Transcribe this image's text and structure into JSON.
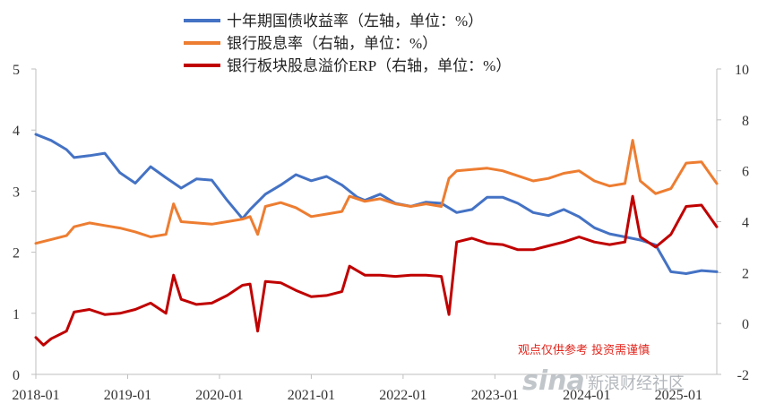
{
  "chart_data": {
    "type": "line",
    "title": "",
    "legend_position": "top-center",
    "grid": false,
    "x": {
      "start": "2018-01",
      "end": "2025-06",
      "tick_labels": [
        "2018-01",
        "2019-01",
        "2020-01",
        "2021-01",
        "2022-01",
        "2023-01",
        "2024-01",
        "2025-01"
      ]
    },
    "y_left": {
      "ylim": [
        0,
        5
      ],
      "ticks": [
        "0",
        "1",
        "2",
        "3",
        "4",
        "5"
      ]
    },
    "y_right": {
      "ylim": [
        -2,
        10
      ],
      "ticks": [
        "-2",
        "0",
        "2",
        "4",
        "6",
        "8",
        "10"
      ]
    },
    "series": [
      {
        "name": "十年期国债收益率（左轴，单位：%）",
        "axis": "left",
        "color": "#4472c4",
        "points": [
          [
            "2018-01",
            3.93
          ],
          [
            "2018-03",
            3.83
          ],
          [
            "2018-05",
            3.68
          ],
          [
            "2018-06",
            3.55
          ],
          [
            "2018-08",
            3.58
          ],
          [
            "2018-10",
            3.62
          ],
          [
            "2018-12",
            3.3
          ],
          [
            "2019-02",
            3.13
          ],
          [
            "2019-04",
            3.4
          ],
          [
            "2019-06",
            3.22
          ],
          [
            "2019-08",
            3.05
          ],
          [
            "2019-10",
            3.2
          ],
          [
            "2019-12",
            3.18
          ],
          [
            "2020-02",
            2.85
          ],
          [
            "2020-04",
            2.55
          ],
          [
            "2020-05",
            2.7
          ],
          [
            "2020-07",
            2.95
          ],
          [
            "2020-09",
            3.1
          ],
          [
            "2020-11",
            3.27
          ],
          [
            "2021-01",
            3.17
          ],
          [
            "2021-03",
            3.24
          ],
          [
            "2021-05",
            3.1
          ],
          [
            "2021-07",
            2.9
          ],
          [
            "2021-08",
            2.85
          ],
          [
            "2021-10",
            2.95
          ],
          [
            "2021-12",
            2.8
          ],
          [
            "2022-02",
            2.75
          ],
          [
            "2022-04",
            2.82
          ],
          [
            "2022-06",
            2.8
          ],
          [
            "2022-08",
            2.65
          ],
          [
            "2022-10",
            2.7
          ],
          [
            "2022-12",
            2.9
          ],
          [
            "2023-02",
            2.9
          ],
          [
            "2023-04",
            2.8
          ],
          [
            "2023-06",
            2.65
          ],
          [
            "2023-08",
            2.6
          ],
          [
            "2023-10",
            2.7
          ],
          [
            "2023-12",
            2.58
          ],
          [
            "2024-02",
            2.4
          ],
          [
            "2024-04",
            2.3
          ],
          [
            "2024-06",
            2.25
          ],
          [
            "2024-08",
            2.2
          ],
          [
            "2024-10",
            2.12
          ],
          [
            "2024-12",
            1.68
          ],
          [
            "2025-02",
            1.65
          ],
          [
            "2025-04",
            1.7
          ],
          [
            "2025-06",
            1.68
          ]
        ]
      },
      {
        "name": "银行股息率（右轴，单位：%）",
        "axis": "right",
        "color": "#ed7d31",
        "points": [
          [
            "2018-01",
            3.15
          ],
          [
            "2018-03",
            3.3
          ],
          [
            "2018-05",
            3.45
          ],
          [
            "2018-06",
            3.8
          ],
          [
            "2018-08",
            3.95
          ],
          [
            "2018-10",
            3.85
          ],
          [
            "2018-12",
            3.75
          ],
          [
            "2019-02",
            3.6
          ],
          [
            "2019-04",
            3.4
          ],
          [
            "2019-06",
            3.5
          ],
          [
            "2019-07",
            4.7
          ],
          [
            "2019-08",
            4.0
          ],
          [
            "2019-10",
            3.95
          ],
          [
            "2019-12",
            3.9
          ],
          [
            "2020-02",
            4.0
          ],
          [
            "2020-04",
            4.1
          ],
          [
            "2020-05",
            4.2
          ],
          [
            "2020-06",
            3.5
          ],
          [
            "2020-07",
            4.6
          ],
          [
            "2020-09",
            4.75
          ],
          [
            "2020-11",
            4.55
          ],
          [
            "2021-01",
            4.2
          ],
          [
            "2021-03",
            4.3
          ],
          [
            "2021-05",
            4.4
          ],
          [
            "2021-06",
            5.0
          ],
          [
            "2021-08",
            4.8
          ],
          [
            "2021-10",
            4.9
          ],
          [
            "2021-12",
            4.7
          ],
          [
            "2022-02",
            4.6
          ],
          [
            "2022-04",
            4.7
          ],
          [
            "2022-06",
            4.6
          ],
          [
            "2022-07",
            5.7
          ],
          [
            "2022-08",
            6.0
          ],
          [
            "2022-10",
            6.05
          ],
          [
            "2022-12",
            6.1
          ],
          [
            "2023-02",
            6.0
          ],
          [
            "2023-04",
            5.8
          ],
          [
            "2023-06",
            5.6
          ],
          [
            "2023-08",
            5.7
          ],
          [
            "2023-10",
            5.9
          ],
          [
            "2023-12",
            6.0
          ],
          [
            "2024-02",
            5.6
          ],
          [
            "2024-04",
            5.4
          ],
          [
            "2024-06",
            5.5
          ],
          [
            "2024-07",
            7.2
          ],
          [
            "2024-08",
            5.6
          ],
          [
            "2024-10",
            5.1
          ],
          [
            "2024-12",
            5.3
          ],
          [
            "2025-02",
            6.3
          ],
          [
            "2025-04",
            6.35
          ],
          [
            "2025-06",
            5.5
          ]
        ]
      },
      {
        "name": "银行板块股息溢价ERP（右轴，单位：%）",
        "axis": "right",
        "color": "#c00000",
        "points": [
          [
            "2018-01",
            -0.55
          ],
          [
            "2018-02",
            -0.85
          ],
          [
            "2018-03",
            -0.6
          ],
          [
            "2018-05",
            -0.3
          ],
          [
            "2018-06",
            0.45
          ],
          [
            "2018-08",
            0.55
          ],
          [
            "2018-10",
            0.35
          ],
          [
            "2018-12",
            0.4
          ],
          [
            "2019-02",
            0.55
          ],
          [
            "2019-04",
            0.8
          ],
          [
            "2019-06",
            0.4
          ],
          [
            "2019-07",
            1.9
          ],
          [
            "2019-08",
            0.95
          ],
          [
            "2019-10",
            0.75
          ],
          [
            "2019-12",
            0.8
          ],
          [
            "2020-02",
            1.1
          ],
          [
            "2020-04",
            1.5
          ],
          [
            "2020-05",
            1.55
          ],
          [
            "2020-06",
            -0.3
          ],
          [
            "2020-07",
            1.65
          ],
          [
            "2020-09",
            1.6
          ],
          [
            "2020-11",
            1.3
          ],
          [
            "2021-01",
            1.05
          ],
          [
            "2021-03",
            1.1
          ],
          [
            "2021-05",
            1.25
          ],
          [
            "2021-06",
            2.25
          ],
          [
            "2021-08",
            1.9
          ],
          [
            "2021-10",
            1.9
          ],
          [
            "2021-12",
            1.85
          ],
          [
            "2022-02",
            1.9
          ],
          [
            "2022-04",
            1.9
          ],
          [
            "2022-06",
            1.85
          ],
          [
            "2022-07",
            0.35
          ],
          [
            "2022-08",
            3.2
          ],
          [
            "2022-10",
            3.35
          ],
          [
            "2022-12",
            3.15
          ],
          [
            "2023-02",
            3.1
          ],
          [
            "2023-04",
            2.9
          ],
          [
            "2023-06",
            2.9
          ],
          [
            "2023-08",
            3.05
          ],
          [
            "2023-10",
            3.2
          ],
          [
            "2023-12",
            3.4
          ],
          [
            "2024-02",
            3.2
          ],
          [
            "2024-04",
            3.1
          ],
          [
            "2024-06",
            3.2
          ],
          [
            "2024-07",
            5.0
          ],
          [
            "2024-08",
            3.4
          ],
          [
            "2024-10",
            3.0
          ],
          [
            "2024-12",
            3.5
          ],
          [
            "2025-02",
            4.6
          ],
          [
            "2025-04",
            4.65
          ],
          [
            "2025-06",
            3.8
          ]
        ]
      }
    ]
  },
  "watermark": {
    "note": "观点仅供参考 投资需谨慎",
    "logo": "sina",
    "brand": "新浪财经社区"
  }
}
